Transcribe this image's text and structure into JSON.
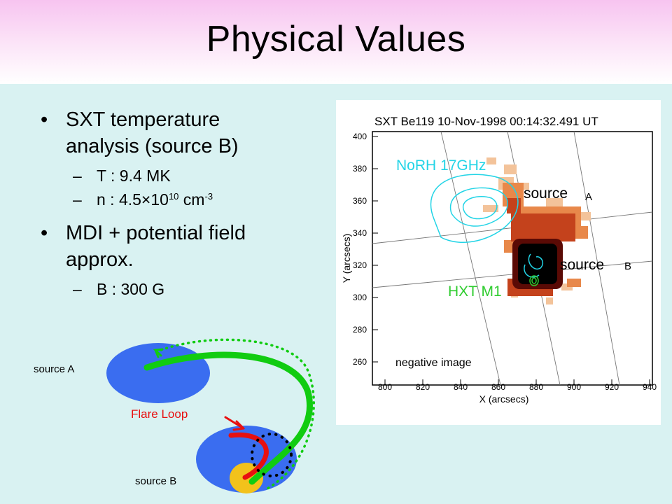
{
  "slide": {
    "title": "Physical Values",
    "bullets": [
      {
        "text_lines": [
          "SXT temperature",
          "analysis (source B)"
        ]
      },
      {
        "text_lines": [
          "MDI + potential field",
          "approx."
        ]
      }
    ],
    "sub_t": "T : 9.4 MK",
    "sub_n_prefix": "n : 4.5×10",
    "sub_n_exp": "10",
    "sub_n_unit": " cm",
    "sub_n_unit_exp": "-3",
    "sub_b": "B : 300 G"
  },
  "plot": {
    "title": "SXT Be119 10-Nov-1998 00:14:32.491 UT",
    "x_label": "X (arcsecs)",
    "y_label": "Y (arcsecs)",
    "x_ticks": [
      "800",
      "820",
      "840",
      "860",
      "880",
      "900",
      "920",
      "940"
    ],
    "y_ticks": [
      "400",
      "380",
      "360",
      "340",
      "320",
      "300",
      "280",
      "260"
    ],
    "label_norh": "NoRH 17GHz",
    "label_hxt": "HXT M1",
    "label_source_a": "source",
    "label_source_b": "source",
    "letter_a": "A",
    "letter_b": "B",
    "note": "negative image",
    "colors": {
      "norh": "#22d4e6",
      "hxt": "#2fcc2f"
    }
  },
  "diagram": {
    "source_a": "source A",
    "source_b": "source B",
    "flare_loop": "Flare Loop",
    "colors": {
      "ellipse": "#3a6df0",
      "spot": "#f2c21b",
      "loop": "#11cc11",
      "flare": "#e81010"
    }
  }
}
